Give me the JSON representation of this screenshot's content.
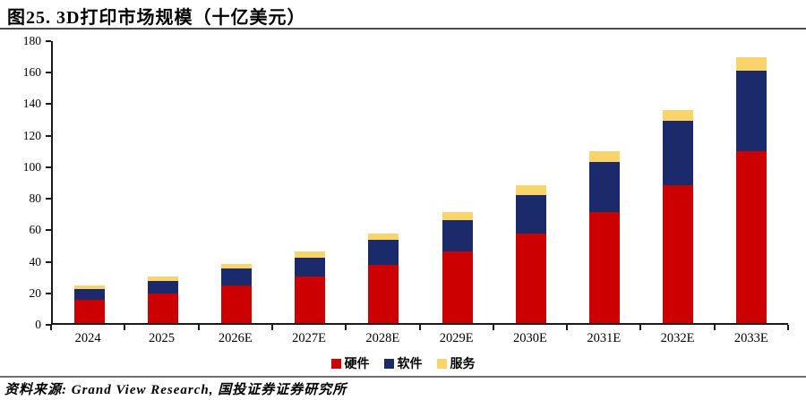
{
  "page": {
    "title": "图25. 3D打印市场规模（十亿美元）",
    "source_note": "资料来源: Grand View Research, 国投证券证券研究所"
  },
  "chart_data": {
    "type": "bar",
    "stacked": true,
    "title": "3D打印市场规模（十亿美元）",
    "unit": "十亿美元 (billion USD)",
    "categories": [
      "2024",
      "2025",
      "2026E",
      "2027E",
      "2028E",
      "2029E",
      "2030E",
      "2031E",
      "2032E",
      "2033E"
    ],
    "series": [
      {
        "key": "hardware",
        "name": "硬件",
        "color": "#CC0000",
        "values": [
          15,
          19,
          24,
          30,
          37,
          46,
          57,
          71,
          88,
          110
        ]
      },
      {
        "key": "software",
        "name": "软件",
        "color": "#1A2A6B",
        "values": [
          7,
          8,
          11,
          12,
          16,
          20,
          25,
          32,
          41,
          51
        ]
      },
      {
        "key": "services",
        "name": "服务",
        "color": "#F9D46B",
        "values": [
          2,
          3,
          3,
          4,
          4,
          5,
          6,
          7,
          7,
          9
        ]
      }
    ],
    "totals": [
      24,
      30,
      38,
      46,
      57,
      71,
      88,
      110,
      136,
      170
    ],
    "ylim": [
      0,
      180
    ],
    "ytick_step": 20,
    "grid": false,
    "legend_position": "bottom-center",
    "axis_color": "#1a1a1a"
  }
}
